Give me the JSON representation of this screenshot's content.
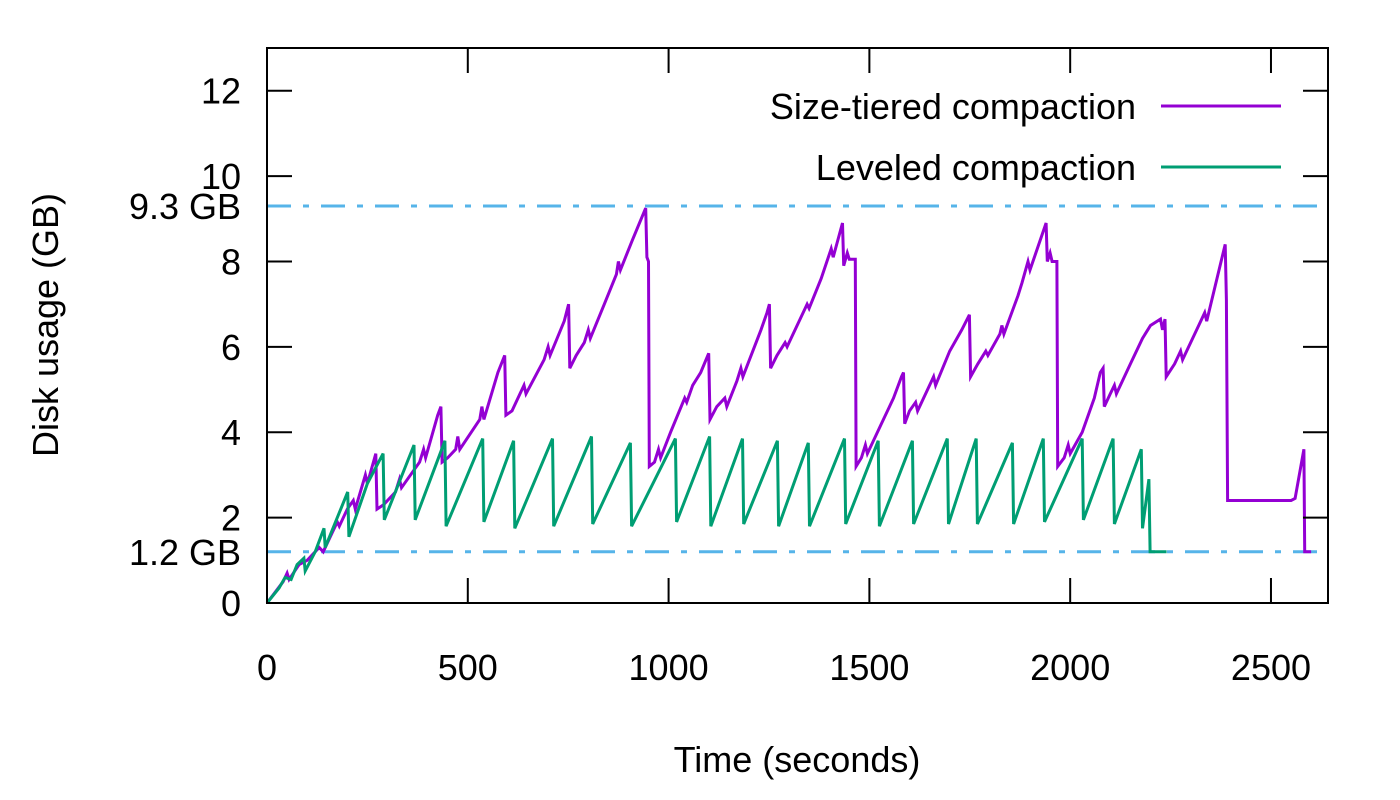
{
  "chart_data": {
    "type": "line",
    "title": "",
    "xlabel": "Time (seconds)",
    "ylabel": "Disk usage (GB)",
    "xlim": [
      0,
      2642
    ],
    "ylim": [
      0,
      13
    ],
    "x_ticks": [
      0,
      500,
      1000,
      1500,
      2000,
      2500
    ],
    "x_tick_labels": [
      "0",
      "500",
      "1000",
      "1500",
      "2000",
      "2500"
    ],
    "y_ticks": [
      0,
      2,
      4,
      6,
      8,
      10,
      12
    ],
    "y_tick_labels": [
      "0",
      "2",
      "4",
      "6",
      "8",
      "10",
      "12"
    ],
    "grid": false,
    "legend_position": "top-right",
    "reference_lines": [
      {
        "y": 9.3,
        "label": "9.3 GB",
        "color": "#56b4e9",
        "style": "dash-dot"
      },
      {
        "y": 1.2,
        "label": "1.2 GB",
        "color": "#56b4e9",
        "style": "dash-dot"
      }
    ],
    "series": [
      {
        "name": "Size-tiered compaction",
        "color": "#9400d3",
        "points": [
          [
            0,
            0
          ],
          [
            40,
            0.5
          ],
          [
            50,
            0.7
          ],
          [
            55,
            0.55
          ],
          [
            80,
            0.9
          ],
          [
            100,
            1.0
          ],
          [
            130,
            1.3
          ],
          [
            140,
            1.2
          ],
          [
            175,
            1.9
          ],
          [
            180,
            1.8
          ],
          [
            200,
            2.2
          ],
          [
            215,
            2.4
          ],
          [
            220,
            2.2
          ],
          [
            245,
            3.0
          ],
          [
            250,
            2.8
          ],
          [
            271,
            3.5
          ],
          [
            274,
            2.2
          ],
          [
            290,
            2.3
          ],
          [
            320,
            2.6
          ],
          [
            330,
            2.9
          ],
          [
            335,
            2.7
          ],
          [
            380,
            3.3
          ],
          [
            390,
            3.6
          ],
          [
            395,
            3.4
          ],
          [
            425,
            4.4
          ],
          [
            433,
            4.6
          ],
          [
            436,
            3.3
          ],
          [
            450,
            3.4
          ],
          [
            470,
            3.6
          ],
          [
            475,
            3.9
          ],
          [
            480,
            3.6
          ],
          [
            530,
            4.3
          ],
          [
            535,
            4.6
          ],
          [
            540,
            4.3
          ],
          [
            575,
            5.4
          ],
          [
            592,
            5.8
          ],
          [
            595,
            4.4
          ],
          [
            610,
            4.5
          ],
          [
            630,
            4.9
          ],
          [
            640,
            5.1
          ],
          [
            645,
            4.9
          ],
          [
            690,
            5.7
          ],
          [
            700,
            6.0
          ],
          [
            705,
            5.8
          ],
          [
            740,
            6.6
          ],
          [
            751,
            7.0
          ],
          [
            754,
            5.5
          ],
          [
            770,
            5.8
          ],
          [
            790,
            6.1
          ],
          [
            800,
            6.4
          ],
          [
            805,
            6.2
          ],
          [
            840,
            7.0
          ],
          [
            870,
            7.7
          ],
          [
            875,
            8.0
          ],
          [
            880,
            7.8
          ],
          [
            910,
            8.5
          ],
          [
            943,
            9.25
          ],
          [
            946,
            8.1
          ],
          [
            950,
            8.0
          ],
          [
            952,
            3.2
          ],
          [
            965,
            3.3
          ],
          [
            975,
            3.6
          ],
          [
            980,
            3.4
          ],
          [
            1005,
            4.0
          ],
          [
            1040,
            4.8
          ],
          [
            1045,
            4.7
          ],
          [
            1060,
            5.1
          ],
          [
            1080,
            5.4
          ],
          [
            1100,
            5.85
          ],
          [
            1103,
            4.3
          ],
          [
            1120,
            4.6
          ],
          [
            1140,
            4.8
          ],
          [
            1145,
            4.6
          ],
          [
            1170,
            5.2
          ],
          [
            1180,
            5.5
          ],
          [
            1185,
            5.3
          ],
          [
            1230,
            6.4
          ],
          [
            1245,
            6.8
          ],
          [
            1251,
            7.0
          ],
          [
            1254,
            5.5
          ],
          [
            1270,
            5.8
          ],
          [
            1290,
            6.1
          ],
          [
            1295,
            6.0
          ],
          [
            1325,
            6.6
          ],
          [
            1345,
            7.0
          ],
          [
            1350,
            6.9
          ],
          [
            1380,
            7.6
          ],
          [
            1405,
            8.3
          ],
          [
            1410,
            8.1
          ],
          [
            1433,
            8.9
          ],
          [
            1436,
            7.9
          ],
          [
            1445,
            8.2
          ],
          [
            1450,
            8.05
          ],
          [
            1465,
            8.05
          ],
          [
            1467,
            3.2
          ],
          [
            1480,
            3.4
          ],
          [
            1490,
            3.7
          ],
          [
            1495,
            3.5
          ],
          [
            1530,
            4.2
          ],
          [
            1550,
            4.6
          ],
          [
            1560,
            4.8
          ],
          [
            1580,
            5.3
          ],
          [
            1585,
            5.4
          ],
          [
            1588,
            4.2
          ],
          [
            1600,
            4.5
          ],
          [
            1615,
            4.7
          ],
          [
            1620,
            4.5
          ],
          [
            1650,
            5.1
          ],
          [
            1660,
            5.3
          ],
          [
            1665,
            5.1
          ],
          [
            1700,
            5.9
          ],
          [
            1730,
            6.4
          ],
          [
            1749,
            6.75
          ],
          [
            1752,
            5.3
          ],
          [
            1770,
            5.6
          ],
          [
            1790,
            5.9
          ],
          [
            1795,
            5.8
          ],
          [
            1825,
            6.3
          ],
          [
            1830,
            6.5
          ],
          [
            1835,
            6.3
          ],
          [
            1870,
            7.2
          ],
          [
            1880,
            7.5
          ],
          [
            1895,
            8.0
          ],
          [
            1900,
            7.8
          ],
          [
            1940,
            8.9
          ],
          [
            1943,
            8.0
          ],
          [
            1950,
            8.2
          ],
          [
            1955,
            8.0
          ],
          [
            1967,
            8.0
          ],
          [
            1969,
            3.2
          ],
          [
            1985,
            3.4
          ],
          [
            1995,
            3.7
          ],
          [
            2000,
            3.5
          ],
          [
            2030,
            4.0
          ],
          [
            2060,
            4.8
          ],
          [
            2075,
            5.4
          ],
          [
            2082,
            5.5
          ],
          [
            2085,
            4.6
          ],
          [
            2100,
            4.9
          ],
          [
            2110,
            5.1
          ],
          [
            2115,
            4.9
          ],
          [
            2150,
            5.6
          ],
          [
            2180,
            6.2
          ],
          [
            2200,
            6.5
          ],
          [
            2225,
            6.65
          ],
          [
            2230,
            6.4
          ],
          [
            2236,
            6.65
          ],
          [
            2239,
            5.3
          ],
          [
            2260,
            5.6
          ],
          [
            2275,
            5.9
          ],
          [
            2280,
            5.7
          ],
          [
            2320,
            6.5
          ],
          [
            2335,
            6.8
          ],
          [
            2340,
            6.6
          ],
          [
            2386,
            8.4
          ],
          [
            2389,
            7.1
          ],
          [
            2392,
            2.4
          ],
          [
            2550,
            2.4
          ],
          [
            2560,
            2.45
          ],
          [
            2582,
            3.6
          ],
          [
            2584,
            1.2
          ],
          [
            2600,
            1.2
          ]
        ]
      },
      {
        "name": "Leveled compaction",
        "color": "#009e73",
        "points": [
          [
            0,
            0
          ],
          [
            30,
            0.35
          ],
          [
            45,
            0.6
          ],
          [
            60,
            0.55
          ],
          [
            75,
            0.9
          ],
          [
            92,
            1.05
          ],
          [
            95,
            0.75
          ],
          [
            120,
            1.2
          ],
          [
            142,
            1.75
          ],
          [
            145,
            1.3
          ],
          [
            175,
            2.0
          ],
          [
            201,
            2.6
          ],
          [
            204,
            1.55
          ],
          [
            250,
            2.8
          ],
          [
            289,
            3.5
          ],
          [
            292,
            1.95
          ],
          [
            366,
            3.7
          ],
          [
            369,
            1.95
          ],
          [
            443,
            3.8
          ],
          [
            446,
            1.8
          ],
          [
            537,
            3.85
          ],
          [
            540,
            1.9
          ],
          [
            614,
            3.8
          ],
          [
            617,
            1.75
          ],
          [
            711,
            3.85
          ],
          [
            714,
            1.8
          ],
          [
            808,
            3.9
          ],
          [
            811,
            1.85
          ],
          [
            905,
            3.75
          ],
          [
            908,
            1.8
          ],
          [
            1017,
            3.85
          ],
          [
            1020,
            1.9
          ],
          [
            1102,
            3.9
          ],
          [
            1105,
            1.8
          ],
          [
            1184,
            3.85
          ],
          [
            1187,
            1.85
          ],
          [
            1271,
            3.8
          ],
          [
            1274,
            1.8
          ],
          [
            1348,
            3.75
          ],
          [
            1351,
            1.8
          ],
          [
            1438,
            3.85
          ],
          [
            1441,
            1.85
          ],
          [
            1522,
            3.8
          ],
          [
            1525,
            1.8
          ],
          [
            1607,
            3.8
          ],
          [
            1610,
            1.85
          ],
          [
            1694,
            3.85
          ],
          [
            1697,
            1.85
          ],
          [
            1766,
            3.85
          ],
          [
            1769,
            1.85
          ],
          [
            1856,
            3.75
          ],
          [
            1859,
            1.85
          ],
          [
            1933,
            3.85
          ],
          [
            1936,
            1.9
          ],
          [
            2030,
            3.85
          ],
          [
            2033,
            1.95
          ],
          [
            2107,
            3.85
          ],
          [
            2110,
            1.85
          ],
          [
            2177,
            3.6
          ],
          [
            2180,
            1.75
          ],
          [
            2196,
            2.9
          ],
          [
            2199,
            1.2
          ],
          [
            2240,
            1.2
          ]
        ]
      }
    ]
  }
}
